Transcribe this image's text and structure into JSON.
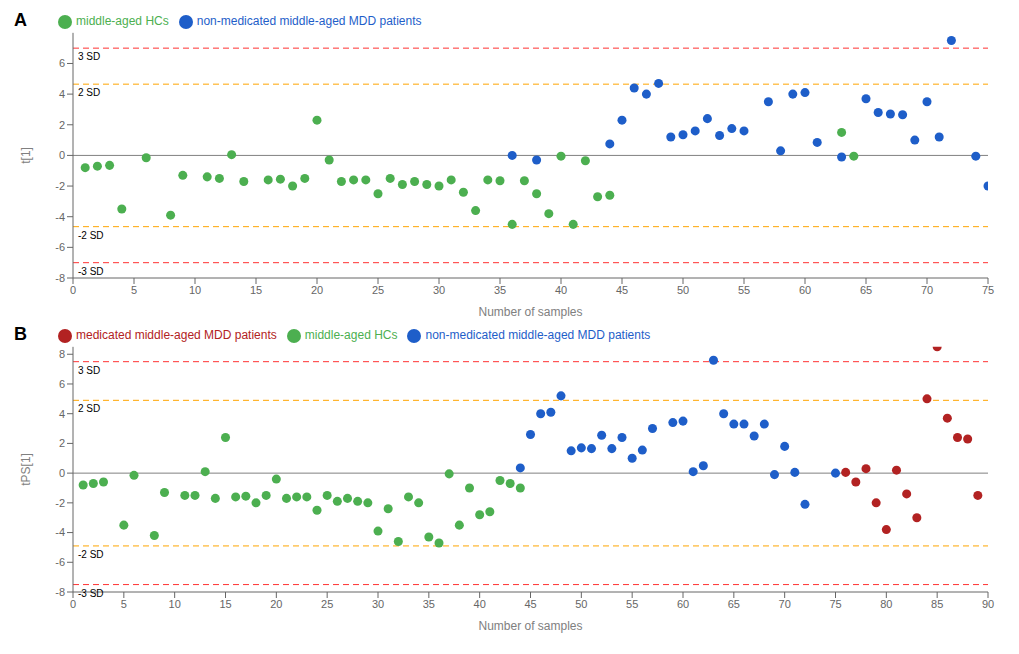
{
  "chart_data": [
    {
      "type": "scatter",
      "title": "A",
      "x_label": "Number of samples",
      "y_label": "t[1]",
      "xlim": [
        0,
        75
      ],
      "ylim": [
        -8,
        8
      ],
      "xticks": [
        0,
        5,
        10,
        15,
        20,
        25,
        30,
        35,
        40,
        45,
        50,
        55,
        60,
        65,
        70,
        75
      ],
      "yticks": [
        -8,
        -6,
        -4,
        -2,
        0,
        2,
        4,
        6
      ],
      "grid": false,
      "legend": "upper left",
      "reference_lines": [
        {
          "y": 7.0,
          "label": "3 SD",
          "color": "#FF3333",
          "line_style": "dashed"
        },
        {
          "y": -7.0,
          "label": "-3 SD",
          "color": "#FF3333",
          "line_style": "dashed"
        },
        {
          "y": 4.65,
          "label": "2 SD",
          "color": "#FFA500",
          "line_style": "dashed"
        },
        {
          "y": -4.65,
          "label": "-2 SD",
          "color": "#FFA500",
          "line_style": "dashed"
        },
        {
          "y": 0,
          "color": "gray",
          "line_style": "solid"
        }
      ],
      "series": [
        {
          "name": "middle-aged HCs",
          "color": "#4CAF50",
          "marker": "circle",
          "x": [
            1,
            2,
            3,
            4,
            6,
            8,
            9,
            11,
            12,
            13,
            14,
            16,
            17,
            18,
            19,
            20,
            21,
            22,
            23,
            24,
            25,
            26,
            27,
            28,
            29,
            30,
            31,
            32,
            33,
            34,
            35,
            36,
            37,
            38,
            39,
            40,
            41,
            42,
            43,
            44,
            63,
            64
          ],
          "values": [
            -0.8,
            -0.7,
            -0.65,
            -3.5,
            -0.15,
            -3.9,
            -1.3,
            -1.4,
            -1.5,
            0.05,
            -1.7,
            -1.6,
            -1.55,
            -2.0,
            -1.5,
            2.3,
            -0.3,
            -1.7,
            -1.6,
            -1.6,
            -2.5,
            -1.5,
            -1.9,
            -1.7,
            -1.9,
            -2.0,
            -1.6,
            -2.4,
            -3.6,
            -1.6,
            -1.65,
            -4.5,
            -1.65,
            -2.5,
            -3.8,
            -0.05,
            -4.5,
            -0.35,
            -2.7,
            -2.6,
            1.5,
            -0.05
          ]
        },
        {
          "name": "non-medicated middle-aged MDD patients",
          "color": "#1E5EC9",
          "marker": "circle",
          "x": [
            36,
            38,
            44,
            45,
            46,
            47,
            48,
            49,
            50,
            51,
            52,
            53,
            54,
            55,
            57,
            58,
            59,
            60,
            61,
            63,
            65,
            66,
            67,
            68,
            69,
            70,
            71,
            72,
            74,
            75
          ],
          "values": [
            0.0,
            -0.3,
            0.75,
            2.3,
            4.4,
            4.0,
            4.7,
            1.2,
            1.35,
            1.6,
            2.4,
            1.3,
            1.75,
            1.6,
            3.5,
            0.3,
            4.0,
            4.1,
            0.85,
            -0.1,
            3.7,
            2.8,
            2.7,
            2.65,
            1.0,
            3.5,
            1.2,
            7.5,
            -0.05,
            -2.0
          ]
        }
      ]
    },
    {
      "type": "scatter",
      "title": "B",
      "x_label": "Number of samples",
      "y_label": "tPS[1]",
      "xlim": [
        0,
        90
      ],
      "ylim": [
        -8,
        8.5
      ],
      "xticks": [
        0,
        5,
        10,
        15,
        20,
        25,
        30,
        35,
        40,
        45,
        50,
        55,
        60,
        65,
        70,
        75,
        80,
        85,
        90
      ],
      "yticks": [
        -8,
        -6,
        -4,
        -2,
        0,
        2,
        4,
        6,
        8
      ],
      "grid": false,
      "legend": "upper left",
      "reference_lines": [
        {
          "y": 7.5,
          "label": "3 SD",
          "color": "#FF3333",
          "line_style": "dashed"
        },
        {
          "y": -7.5,
          "label": "-3 SD",
          "color": "#FF3333",
          "line_style": "dashed"
        },
        {
          "y": 4.9,
          "label": "2 SD",
          "color": "#FFA500",
          "line_style": "dashed"
        },
        {
          "y": -4.9,
          "label": "-2 SD",
          "color": "#FFA500",
          "line_style": "dashed"
        },
        {
          "y": 0,
          "color": "gray",
          "line_style": "solid"
        }
      ],
      "series": [
        {
          "name": "middle-aged HCs",
          "color": "#4CAF50",
          "marker": "circle",
          "x": [
            1,
            2,
            3,
            5,
            6,
            8,
            9,
            11,
            12,
            13,
            14,
            15,
            16,
            17,
            18,
            19,
            20,
            21,
            22,
            23,
            24,
            25,
            26,
            27,
            28,
            29,
            30,
            31,
            32,
            33,
            34,
            35,
            36,
            37,
            38,
            39,
            40,
            41,
            42,
            43,
            44
          ],
          "values": [
            -0.8,
            -0.7,
            -0.6,
            -3.5,
            -0.15,
            -4.2,
            -1.3,
            -1.5,
            -1.5,
            0.1,
            -1.7,
            2.4,
            -1.6,
            -1.55,
            -2.0,
            -1.5,
            -0.4,
            -1.7,
            -1.6,
            -1.6,
            -2.5,
            -1.5,
            -1.9,
            -1.7,
            -1.9,
            -2.0,
            -3.9,
            -2.4,
            -4.6,
            -1.6,
            -2.0,
            -4.3,
            -4.7,
            -0.05,
            -3.5,
            -1.0,
            -2.8,
            -2.6,
            -0.5,
            -0.7,
            -1.0
          ]
        },
        {
          "name": "non-medicated middle-aged MDD patients",
          "color": "#1E5EC9",
          "marker": "circle",
          "x": [
            44,
            45,
            46,
            47,
            48,
            49,
            50,
            51,
            52,
            53,
            54,
            55,
            56,
            57,
            59,
            60,
            61,
            62,
            63,
            64,
            65,
            66,
            67,
            68,
            69,
            70,
            71,
            72,
            75
          ],
          "values": [
            0.35,
            2.6,
            4.0,
            4.1,
            5.2,
            1.5,
            1.7,
            1.65,
            2.55,
            1.65,
            2.4,
            1.0,
            1.55,
            3.0,
            3.4,
            3.5,
            0.1,
            0.5,
            7.6,
            4.0,
            3.3,
            3.3,
            2.5,
            3.3,
            -0.1,
            1.8,
            0.05,
            -2.1,
            -0.0
          ]
        },
        {
          "name": "medicated middle-aged MDD patients",
          "color": "#B22222",
          "marker": "circle",
          "x": [
            76,
            77,
            78,
            79,
            80,
            81,
            82,
            83,
            84,
            85,
            86,
            87,
            88,
            89
          ],
          "values": [
            0.05,
            -0.6,
            0.3,
            -2.0,
            -3.8,
            0.2,
            -1.4,
            -3.0,
            5.0,
            8.5,
            3.7,
            2.4,
            2.3,
            -1.5
          ]
        }
      ]
    }
  ]
}
